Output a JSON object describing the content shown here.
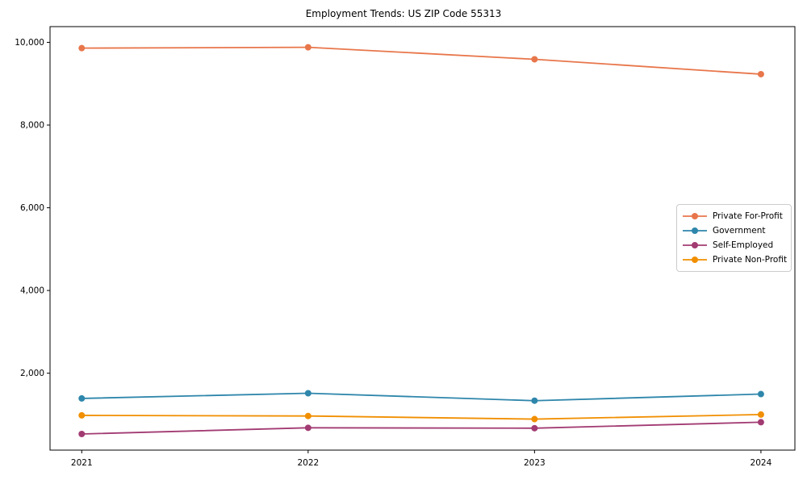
{
  "chart_data": {
    "type": "line",
    "title": "Employment Trends: US ZIP Code 55313",
    "xlabel": "",
    "ylabel": "",
    "x": [
      2021,
      2022,
      2023,
      2024
    ],
    "xtick_labels": [
      "2021",
      "2022",
      "2023",
      "2024"
    ],
    "yticks": [
      2000,
      4000,
      6000,
      8000,
      10000
    ],
    "ytick_labels": [
      "2,000",
      "4,000",
      "6,000",
      "8,000",
      "10,000"
    ],
    "xlim": [
      2020.86,
      2024.15
    ],
    "ylim": [
      140,
      10380
    ],
    "grid": false,
    "plot_background": "#ffffff",
    "axis_color": "#000000",
    "text_color": "#000000",
    "legend_position": "center-right",
    "marker": "circle",
    "series": [
      {
        "name": "Private For-Profit",
        "color": "#E8764B",
        "values": [
          9860,
          9880,
          9590,
          9230
        ]
      },
      {
        "name": "Government",
        "color": "#2E86AB",
        "values": [
          1390,
          1515,
          1335,
          1495
        ]
      },
      {
        "name": "Self-Employed",
        "color": "#A23B72",
        "values": [
          530,
          680,
          670,
          815
        ]
      },
      {
        "name": "Private Non-Profit",
        "color": "#F18F01",
        "values": [
          980,
          965,
          890,
          1000
        ]
      }
    ]
  }
}
